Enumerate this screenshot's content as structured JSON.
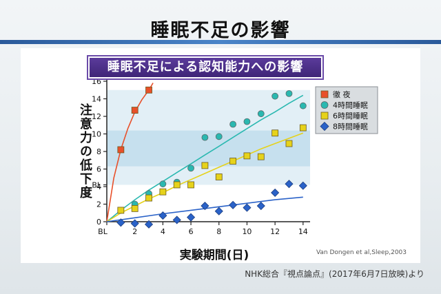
{
  "slide": {
    "title": "睡眠不足の影響",
    "subtitle": "睡眠不足による認知能力への影響",
    "citation": "Van Dongen et al,Sleep,2003",
    "footer": "NHK総合『視点論点』(2017年6月7日放映)より"
  },
  "colors": {
    "background_bar": "#3f6fb0",
    "subtitle_bg": "#4a2d86",
    "band_light": "#e2eff6",
    "band_mid": "#c6e0ee",
    "red": "#e8502a",
    "teal": "#2ab8b0",
    "yellow": "#e6d21a",
    "blue": "#2a62c8"
  },
  "chart_data": {
    "type": "scatter",
    "title": "睡眠不足による認知能力への影響",
    "xlabel": "実験期間(日)",
    "ylabel": "注意力の低下度",
    "xlim": [
      0,
      14.5
    ],
    "ylim": [
      0,
      16
    ],
    "x_ticks": [
      "BL",
      "2",
      "4",
      "6",
      "8",
      "10",
      "12",
      "14"
    ],
    "y_ticks": [
      "0",
      "2",
      "4",
      "6",
      "8",
      "10",
      "12",
      "14",
      "16"
    ],
    "y_special_tick": "BL",
    "y_special_tick_value": 4.2,
    "bands": [
      {
        "from": 4.2,
        "to": 6.3,
        "level": "light"
      },
      {
        "from": 6.3,
        "to": 10.4,
        "level": "mid"
      },
      {
        "from": 10.4,
        "to": 15.0,
        "level": "light"
      }
    ],
    "legend_position": "top-right",
    "series": [
      {
        "name": "徹 夜",
        "marker": "square",
        "color": "#e8502a",
        "x": [
          1,
          2,
          3
        ],
        "y": [
          8.2,
          12.7,
          15.0
        ],
        "fit": [
          [
            0,
            0
          ],
          [
            0.5,
            5.0
          ],
          [
            1,
            8.2
          ],
          [
            1.5,
            10.6
          ],
          [
            2,
            12.5
          ],
          [
            2.5,
            13.9
          ],
          [
            3,
            15.0
          ],
          [
            3.3,
            15.8
          ]
        ]
      },
      {
        "name": "4時間睡眠",
        "marker": "circle",
        "color": "#2ab8b0",
        "x": [
          1,
          2,
          3,
          4,
          5,
          6,
          7,
          8,
          9,
          10,
          11,
          12,
          13,
          14
        ],
        "y": [
          1.3,
          2.0,
          3.2,
          4.3,
          4.5,
          6.1,
          9.6,
          9.7,
          11.1,
          11.4,
          12.3,
          14.3,
          14.6,
          13.2
        ],
        "fit": [
          [
            0,
            0
          ],
          [
            1,
            1.3
          ],
          [
            2,
            2.5
          ],
          [
            3,
            3.6
          ],
          [
            4,
            4.6
          ],
          [
            5,
            5.6
          ],
          [
            6,
            6.6
          ],
          [
            7,
            7.6
          ],
          [
            8,
            8.6
          ],
          [
            9,
            9.6
          ],
          [
            10,
            10.6
          ],
          [
            11,
            11.6
          ],
          [
            12,
            12.5
          ],
          [
            13,
            13.5
          ],
          [
            14,
            14.4
          ]
        ]
      },
      {
        "name": "6時間睡眠",
        "marker": "square",
        "color": "#e6d21a",
        "x": [
          1,
          2,
          3,
          4,
          5,
          6,
          7,
          8,
          9,
          10,
          11,
          12,
          13,
          14
        ],
        "y": [
          1.3,
          1.5,
          2.7,
          3.4,
          4.2,
          4.2,
          6.4,
          5.1,
          6.9,
          7.5,
          7.4,
          10.1,
          8.9,
          10.7
        ],
        "fit": [
          [
            0,
            0
          ],
          [
            1,
            1.0
          ],
          [
            2,
            1.8
          ],
          [
            3,
            2.6
          ],
          [
            4,
            3.3
          ],
          [
            5,
            4.1
          ],
          [
            6,
            4.8
          ],
          [
            7,
            5.5
          ],
          [
            8,
            6.2
          ],
          [
            9,
            6.9
          ],
          [
            10,
            7.6
          ],
          [
            11,
            8.3
          ],
          [
            12,
            8.9
          ],
          [
            13,
            9.5
          ],
          [
            14,
            10.1
          ]
        ]
      },
      {
        "name": "8時間睡眠",
        "marker": "diamond",
        "color": "#2a62c8",
        "x": [
          1,
          2,
          3,
          4,
          5,
          6,
          7,
          8,
          9,
          10,
          11,
          12,
          13,
          14
        ],
        "y": [
          -0.1,
          -0.2,
          -0.3,
          0.7,
          0.2,
          0.5,
          1.8,
          1.2,
          1.9,
          1.6,
          1.8,
          3.3,
          4.3,
          4.1
        ],
        "fit": [
          [
            0,
            0
          ],
          [
            2,
            0.45
          ],
          [
            4,
            0.9
          ],
          [
            6,
            1.3
          ],
          [
            8,
            1.7
          ],
          [
            10,
            2.1
          ],
          [
            12,
            2.5
          ],
          [
            14,
            2.8
          ]
        ]
      }
    ]
  }
}
